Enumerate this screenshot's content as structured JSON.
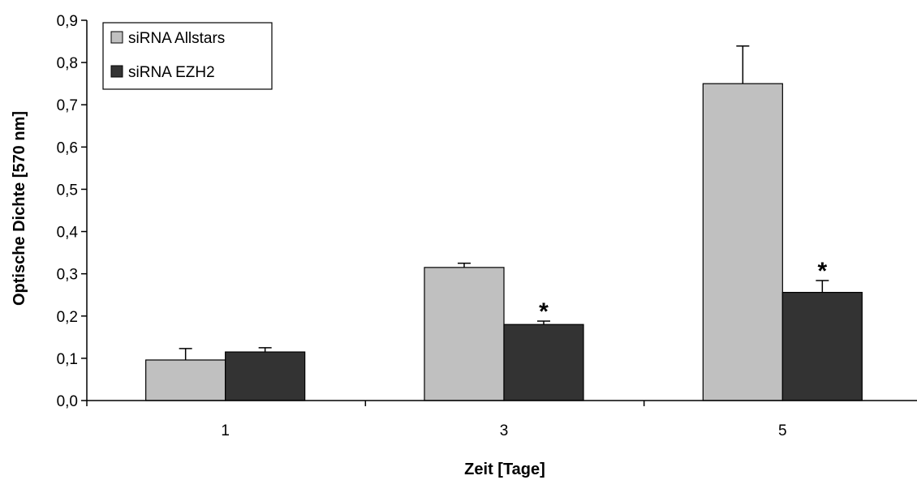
{
  "chart_data": {
    "type": "bar",
    "categories": [
      "1",
      "3",
      "5"
    ],
    "series": [
      {
        "name": "siRNA Allstars",
        "color": "#c0c0c0",
        "values": [
          0.096,
          0.315,
          0.75
        ],
        "errors": [
          0.027,
          0.01,
          0.089
        ],
        "annotations": [
          "",
          "",
          ""
        ]
      },
      {
        "name": "siRNA EZH2",
        "color": "#333333",
        "values": [
          0.115,
          0.18,
          0.256
        ],
        "errors": [
          0.01,
          0.008,
          0.028
        ],
        "annotations": [
          "",
          "*",
          "*"
        ]
      }
    ],
    "xlabel": "Zeit [Tage]",
    "ylabel": "Optische Dichte [570 nm]",
    "ylim": [
      0,
      0.9
    ],
    "yticks": [
      "0,0",
      "0,1",
      "0,2",
      "0,3",
      "0,4",
      "0,5",
      "0,6",
      "0,7",
      "0,8",
      "0,9"
    ],
    "grid": false,
    "legend_position": "top-left"
  }
}
